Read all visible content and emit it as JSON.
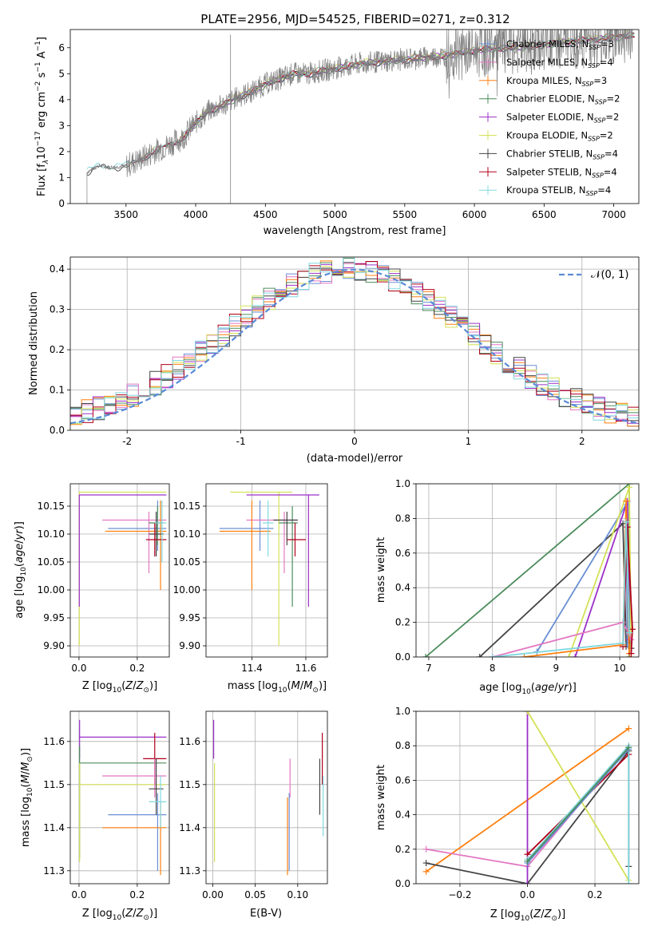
{
  "title": "PLATE=2956, MJD=54525, FIBERID=0271, z=0.312",
  "legend_spec": [
    {
      "name": "Chabrier MILES, N",
      "sub": "SSP",
      "tail": "=3",
      "color": "#6a8fd4"
    },
    {
      "name": "Salpeter MILES, N",
      "sub": "SSP",
      "tail": "=4",
      "color": "#e377c2"
    },
    {
      "name": "Kroupa MILES, N",
      "sub": "SSP",
      "tail": "=3",
      "color": "#ff7f0e"
    },
    {
      "name": "Chabrier ELODIE, N",
      "sub": "SSP",
      "tail": "=2",
      "color": "#4c8c5c"
    },
    {
      "name": "Salpeter ELODIE, N",
      "sub": "SSP",
      "tail": "=2",
      "color": "#9b30c8"
    },
    {
      "name": "Kroupa ELODIE, N",
      "sub": "SSP",
      "tail": "=2",
      "color": "#d4e157"
    },
    {
      "name": "Chabrier STELIB, N",
      "sub": "SSP",
      "tail": "=4",
      "color": "#444444"
    },
    {
      "name": "Salpeter STELIB, N",
      "sub": "SSP",
      "tail": "=4",
      "color": "#b0001a"
    },
    {
      "name": "Kroupa STELIB, N",
      "sub": "SSP",
      "tail": "=4",
      "color": "#80d8e0"
    }
  ],
  "normal_label": "𝒩(0, 1)",
  "chart_data": [
    {
      "id": "spectrum",
      "type": "line",
      "xlabel": "wavelength [Angstrom, rest frame]",
      "ylabel_parts": [
        "Flux [f",
        "λ",
        "10",
        "−17",
        " erg cm",
        "−2",
        " s",
        "−1",
        " A",
        "−1",
        "]"
      ],
      "xlim": [
        3100,
        7180
      ],
      "ylim": [
        0,
        6.7
      ],
      "xticks": [
        3500,
        4000,
        4500,
        5000,
        5500,
        6000,
        6500,
        7000
      ],
      "yticks": [
        0,
        1,
        2,
        3,
        4,
        5,
        6
      ],
      "data_continuum": [
        [
          3220,
          1.2
        ],
        [
          3300,
          1.45
        ],
        [
          3400,
          1.4
        ],
        [
          3500,
          1.45
        ],
        [
          3600,
          1.7
        ],
        [
          3700,
          2.0
        ],
        [
          3800,
          2.25
        ],
        [
          3900,
          2.5
        ],
        [
          4000,
          3.1
        ],
        [
          4100,
          3.6
        ],
        [
          4200,
          3.8
        ],
        [
          4300,
          4.1
        ],
        [
          4400,
          4.3
        ],
        [
          4500,
          4.6
        ],
        [
          4600,
          4.8
        ],
        [
          4700,
          5.0
        ],
        [
          4800,
          5.0
        ],
        [
          4900,
          5.1
        ],
        [
          5000,
          5.2
        ],
        [
          5200,
          5.4
        ],
        [
          5400,
          5.5
        ],
        [
          5600,
          5.6
        ],
        [
          5800,
          5.7
        ],
        [
          6000,
          5.9
        ],
        [
          6200,
          6.0
        ],
        [
          6400,
          6.05
        ],
        [
          6600,
          6.2
        ],
        [
          6800,
          6.3
        ],
        [
          7000,
          6.4
        ],
        [
          7150,
          6.5
        ]
      ]
    },
    {
      "id": "residuals",
      "type": "step",
      "xlabel": "(data-model)/error",
      "ylabel": "Normed distribution",
      "xlim": [
        -2.5,
        2.5
      ],
      "ylim": [
        0,
        0.43
      ],
      "xticks": [
        -2,
        -1,
        0,
        1,
        2
      ],
      "yticks": [
        0.0,
        0.1,
        0.2,
        0.3,
        0.4
      ],
      "legend": "𝒩(0, 1)"
    },
    {
      "id": "age_vs_Z",
      "type": "errorbar",
      "xlabel": "Z [log10(Z/Z⊙)]",
      "ylabel": "age  [log10(age/yr)]",
      "xlim": [
        -0.03,
        0.31
      ],
      "ylim": [
        9.88,
        10.19
      ],
      "xticks": [
        0.0,
        0.2
      ],
      "yticks": [
        9.9,
        9.95,
        10.0,
        10.05,
        10.1,
        10.15
      ],
      "points": [
        {
          "x": 0.001,
          "y": 10.175,
          "xl": 0,
          "xh": 0.3,
          "yl": 9.9,
          "yh": 10.175,
          "c": "#d4e157"
        },
        {
          "x": 0.001,
          "y": 10.17,
          "xl": 0,
          "xh": 0.3,
          "yl": 9.97,
          "yh": 10.17,
          "c": "#9b30c8"
        },
        {
          "x": 0.27,
          "y": 10.11,
          "xl": 0.1,
          "xh": 0.3,
          "yl": 10.07,
          "yh": 10.16,
          "c": "#6a8fd4"
        },
        {
          "x": 0.24,
          "y": 10.125,
          "xl": 0.08,
          "xh": 0.3,
          "yl": 10.03,
          "yh": 10.14,
          "c": "#e377c2"
        },
        {
          "x": 0.28,
          "y": 10.105,
          "xl": 0.09,
          "xh": 0.3,
          "yl": 10.0,
          "yh": 10.16,
          "c": "#ff7f0e"
        },
        {
          "x": 0.27,
          "y": 10.12,
          "xl": 0.24,
          "xh": 0.29,
          "yl": 10.08,
          "yh": 10.15,
          "c": "#4c8c5c"
        },
        {
          "x": 0.265,
          "y": 10.1,
          "xl": 0.24,
          "xh": 0.29,
          "yl": 10.06,
          "yh": 10.14,
          "c": "#444444"
        },
        {
          "x": 0.26,
          "y": 10.09,
          "xl": 0.23,
          "xh": 0.3,
          "yl": 10.06,
          "yh": 10.12,
          "c": "#b0001a"
        },
        {
          "x": 0.285,
          "y": 10.12,
          "xl": 0.26,
          "xh": 0.3,
          "yl": 10.05,
          "yh": 10.16,
          "c": "#80d8e0"
        }
      ]
    },
    {
      "id": "age_vs_mass",
      "type": "errorbar",
      "xlabel": "mass [log10(M/M⊙)]",
      "ylabel": "",
      "xlim": [
        11.23,
        11.68
      ],
      "ylim": [
        9.88,
        10.19
      ],
      "xticks": [
        11.4,
        11.6
      ],
      "yticks": [
        9.9,
        9.95,
        10.0,
        10.05,
        10.1,
        10.15
      ],
      "points": [
        {
          "x": 11.5,
          "y": 10.175,
          "xl": 11.32,
          "xh": 11.55,
          "yl": 9.9,
          "yh": 10.175,
          "c": "#d4e157"
        },
        {
          "x": 11.61,
          "y": 10.17,
          "xl": 11.38,
          "xh": 11.65,
          "yl": 9.97,
          "yh": 10.17,
          "c": "#9b30c8"
        },
        {
          "x": 11.43,
          "y": 10.11,
          "xl": 11.28,
          "xh": 11.48,
          "yl": 10.07,
          "yh": 10.16,
          "c": "#6a8fd4"
        },
        {
          "x": 11.52,
          "y": 10.125,
          "xl": 11.38,
          "xh": 11.57,
          "yl": 10.03,
          "yh": 10.14,
          "c": "#e377c2"
        },
        {
          "x": 11.4,
          "y": 10.105,
          "xl": 11.28,
          "xh": 11.47,
          "yl": 10.0,
          "yh": 10.16,
          "c": "#ff7f0e"
        },
        {
          "x": 11.55,
          "y": 10.12,
          "xl": 11.5,
          "xh": 11.57,
          "yl": 9.97,
          "yh": 10.15,
          "c": "#4c8c5c"
        },
        {
          "x": 11.53,
          "y": 10.125,
          "xl": 11.48,
          "xh": 11.57,
          "yl": 10.08,
          "yh": 10.14,
          "c": "#444444"
        },
        {
          "x": 11.56,
          "y": 10.09,
          "xl": 11.53,
          "xh": 11.6,
          "yl": 10.06,
          "yh": 10.12,
          "c": "#b0001a"
        },
        {
          "x": 11.46,
          "y": 10.12,
          "xl": 11.44,
          "xh": 11.48,
          "yl": 10.06,
          "yh": 10.16,
          "c": "#80d8e0"
        }
      ]
    },
    {
      "id": "weight_vs_age",
      "type": "line",
      "xlabel": "age  [log10(age/yr)]",
      "ylabel": "mass weight",
      "xlim": [
        6.8,
        10.3
      ],
      "ylim": [
        0,
        1.0
      ],
      "xticks": [
        7,
        8,
        9,
        10
      ],
      "yticks": [
        0.0,
        0.2,
        0.4,
        0.6,
        0.8,
        1.0
      ],
      "series": [
        {
          "c": "#4c8c5c",
          "pts": [
            [
              6.95,
              0.0
            ],
            [
              10.15,
              1.0
            ],
            [
              10.15,
              0.0
            ]
          ]
        },
        {
          "c": "#444444",
          "pts": [
            [
              7.8,
              0.0
            ],
            [
              10.05,
              0.77
            ],
            [
              10.1,
              0.06
            ],
            [
              10.15,
              0.12
            ],
            [
              10.18,
              0.05
            ]
          ]
        },
        {
          "c": "#6a8fd4",
          "pts": [
            [
              8.7,
              0.03
            ],
            [
              10.1,
              0.88
            ],
            [
              10.12,
              0.07
            ],
            [
              10.15,
              0.13
            ]
          ]
        },
        {
          "c": "#9b30c8",
          "pts": [
            [
              9.3,
              0.0
            ],
            [
              10.12,
              0.9
            ],
            [
              10.15,
              0.1
            ]
          ]
        },
        {
          "c": "#d4e157",
          "pts": [
            [
              9.2,
              0.0
            ],
            [
              10.15,
              0.98
            ],
            [
              10.18,
              0.02
            ]
          ]
        },
        {
          "c": "#e377c2",
          "pts": [
            [
              8.0,
              0.0
            ],
            [
              10.05,
              0.2
            ],
            [
              10.15,
              0.13
            ],
            [
              10.18,
              0.1
            ]
          ]
        },
        {
          "c": "#ff7f0e",
          "pts": [
            [
              8.5,
              0.0
            ],
            [
              10.05,
              0.07
            ],
            [
              10.1,
              0.9
            ],
            [
              10.15,
              0.02
            ]
          ]
        },
        {
          "c": "#b0001a",
          "pts": [
            [
              10.05,
              0.06
            ],
            [
              10.12,
              0.75
            ],
            [
              10.2,
              0.16
            ],
            [
              10.18,
              0.02
            ]
          ]
        },
        {
          "c": "#80d8e0",
          "pts": [
            [
              8.0,
              0.0
            ],
            [
              10.05,
              0.08
            ],
            [
              10.1,
              0.78
            ],
            [
              10.15,
              0.14
            ]
          ]
        }
      ]
    },
    {
      "id": "mass_vs_Z",
      "type": "errorbar",
      "xlabel": "Z [log10(Z/Z⊙)]",
      "ylabel": "mass [log10(M/M⊙)]",
      "xlim": [
        -0.03,
        0.31
      ],
      "ylim": [
        11.27,
        11.67
      ],
      "xticks": [
        0.0,
        0.2
      ],
      "yticks": [
        11.3,
        11.4,
        11.5,
        11.6
      ],
      "points": [
        {
          "x": 0.002,
          "y": 11.61,
          "xl": 0,
          "xh": 0.3,
          "yl": 11.56,
          "yh": 11.65,
          "c": "#9b30c8"
        },
        {
          "x": 0.002,
          "y": 11.55,
          "xl": 0,
          "xh": 0.3,
          "yl": 11.33,
          "yh": 11.59,
          "c": "#4c8c5c"
        },
        {
          "x": 0.002,
          "y": 11.5,
          "xl": 0,
          "xh": 0.3,
          "yl": 11.32,
          "yh": 11.55,
          "c": "#d4e157"
        },
        {
          "x": 0.26,
          "y": 11.56,
          "xl": 0.22,
          "xh": 0.3,
          "yl": 11.5,
          "yh": 11.62,
          "c": "#b0001a"
        },
        {
          "x": 0.26,
          "y": 11.52,
          "xl": 0.08,
          "xh": 0.3,
          "yl": 11.47,
          "yh": 11.56,
          "c": "#e377c2"
        },
        {
          "x": 0.27,
          "y": 11.43,
          "xl": 0.1,
          "xh": 0.3,
          "yl": 11.3,
          "yh": 11.48,
          "c": "#6a8fd4"
        },
        {
          "x": 0.28,
          "y": 11.4,
          "xl": 0.08,
          "xh": 0.3,
          "yl": 11.29,
          "yh": 11.46,
          "c": "#ff7f0e"
        },
        {
          "x": 0.265,
          "y": 11.49,
          "xl": 0.24,
          "xh": 0.29,
          "yl": 11.43,
          "yh": 11.56,
          "c": "#444444"
        },
        {
          "x": 0.28,
          "y": 11.46,
          "xl": 0.24,
          "xh": 0.3,
          "yl": 11.4,
          "yh": 11.52,
          "c": "#80d8e0"
        }
      ]
    },
    {
      "id": "mass_vs_EBV",
      "type": "errorbar",
      "xlabel": "E(B-V)",
      "ylabel": "",
      "xlim": [
        -0.008,
        0.135
      ],
      "ylim": [
        11.27,
        11.67
      ],
      "xticks": [
        0.0,
        0.05,
        0.1
      ],
      "xticklabels": [
        "0.00",
        "0.05",
        "0.10"
      ],
      "yticks": [
        11.3,
        11.4,
        11.5,
        11.6
      ],
      "points": [
        {
          "x": 0.001,
          "y": 11.61,
          "xl": 0.001,
          "xh": 0.001,
          "yl": 11.56,
          "yh": 11.65,
          "c": "#9b30c8"
        },
        {
          "x": 0.002,
          "y": 11.5,
          "xl": 0.002,
          "xh": 0.002,
          "yl": 11.32,
          "yh": 11.55,
          "c": "#d4e157"
        },
        {
          "x": 0.091,
          "y": 11.52,
          "xl": 0.091,
          "xh": 0.091,
          "yl": 11.47,
          "yh": 11.56,
          "c": "#e377c2"
        },
        {
          "x": 0.088,
          "y": 11.4,
          "xl": 0.088,
          "xh": 0.088,
          "yl": 11.29,
          "yh": 11.47,
          "c": "#ff7f0e"
        },
        {
          "x": 0.09,
          "y": 11.43,
          "xl": 0.09,
          "xh": 0.09,
          "yl": 11.3,
          "yh": 11.48,
          "c": "#6a8fd4"
        },
        {
          "x": 0.126,
          "y": 11.49,
          "xl": 0.126,
          "xh": 0.126,
          "yl": 11.43,
          "yh": 11.56,
          "c": "#444444"
        },
        {
          "x": 0.129,
          "y": 11.56,
          "xl": 0.129,
          "xh": 0.129,
          "yl": 11.5,
          "yh": 11.62,
          "c": "#b0001a"
        },
        {
          "x": 0.13,
          "y": 11.46,
          "xl": 0.13,
          "xh": 0.13,
          "yl": 11.38,
          "yh": 11.52,
          "c": "#80d8e0"
        }
      ]
    },
    {
      "id": "weight_vs_Z",
      "type": "line",
      "xlabel": "Z [log10(Z/Z⊙)]",
      "ylabel": "mass weight",
      "xlim": [
        -0.33,
        0.33
      ],
      "ylim": [
        0,
        1.0
      ],
      "xticks": [
        -0.2,
        0.0,
        0.2
      ],
      "xticklabels": [
        "−0.2",
        "0.0",
        "0.2"
      ],
      "yticks": [
        0.0,
        0.2,
        0.4,
        0.6,
        0.8,
        1.0
      ],
      "series": [
        {
          "c": "#ff7f0e",
          "pts": [
            [
              -0.3,
              0.07
            ],
            [
              0.3,
              0.9
            ]
          ]
        },
        {
          "c": "#444444",
          "pts": [
            [
              -0.3,
              0.12
            ],
            [
              0.0,
              0.0
            ],
            [
              0.3,
              0.77
            ],
            [
              0.3,
              0.1
            ]
          ]
        },
        {
          "c": "#e377c2",
          "pts": [
            [
              -0.3,
              0.2
            ],
            [
              0.0,
              0.1
            ],
            [
              0.3,
              0.8
            ]
          ]
        },
        {
          "c": "#9b30c8",
          "pts": [
            [
              0.0,
              1.0
            ],
            [
              0.0,
              0.0
            ]
          ]
        },
        {
          "c": "#d4e157",
          "pts": [
            [
              0.0,
              1.0
            ],
            [
              0.3,
              0.02
            ]
          ]
        },
        {
          "c": "#b0001a",
          "pts": [
            [
              0.0,
              0.17
            ],
            [
              0.3,
              0.75
            ]
          ]
        },
        {
          "c": "#80d8e0",
          "pts": [
            [
              0.0,
              0.14
            ],
            [
              0.3,
              0.8
            ],
            [
              0.3,
              0.0
            ]
          ]
        },
        {
          "c": "#6a8fd4",
          "pts": [
            [
              0.0,
              0.12
            ],
            [
              0.3,
              0.78
            ]
          ]
        },
        {
          "c": "#4c8c5c",
          "pts": [
            [
              0.0,
              0.13
            ],
            [
              0.3,
              0.79
            ]
          ]
        }
      ]
    }
  ]
}
